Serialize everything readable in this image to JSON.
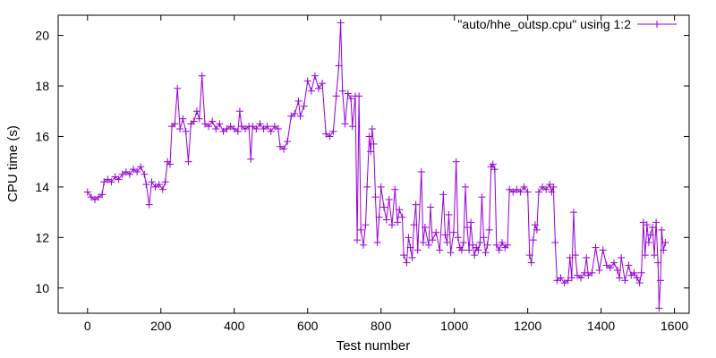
{
  "chart_data": {
    "type": "line",
    "xlabel": "Test number",
    "ylabel": "CPU time (s)",
    "xlim": [
      -80,
      1640
    ],
    "ylim": [
      9.0,
      20.8
    ],
    "xticks": [
      0,
      200,
      400,
      600,
      800,
      1000,
      1200,
      1400,
      1600
    ],
    "yticks": [
      10,
      12,
      14,
      16,
      18,
      20
    ],
    "grid": false,
    "legend_position": "top-right",
    "series": [
      {
        "name": "\"auto/hhe_outsp.cpu\" using 1:2",
        "color": "#9400D3",
        "marker": "plus",
        "points": [
          [
            0,
            13.8
          ],
          [
            10,
            13.6
          ],
          [
            20,
            13.5
          ],
          [
            30,
            13.6
          ],
          [
            40,
            13.7
          ],
          [
            45,
            14.2
          ],
          [
            55,
            14.3
          ],
          [
            65,
            14.2
          ],
          [
            75,
            14.4
          ],
          [
            85,
            14.3
          ],
          [
            95,
            14.5
          ],
          [
            105,
            14.6
          ],
          [
            115,
            14.5
          ],
          [
            125,
            14.7
          ],
          [
            135,
            14.6
          ],
          [
            145,
            14.8
          ],
          [
            155,
            14.5
          ],
          [
            160,
            14.1
          ],
          [
            168,
            13.3
          ],
          [
            175,
            14.2
          ],
          [
            185,
            14.0
          ],
          [
            195,
            14.1
          ],
          [
            205,
            13.9
          ],
          [
            212,
            14.2
          ],
          [
            218,
            15.0
          ],
          [
            225,
            14.9
          ],
          [
            230,
            16.4
          ],
          [
            238,
            16.5
          ],
          [
            245,
            17.9
          ],
          [
            252,
            16.3
          ],
          [
            260,
            16.7
          ],
          [
            268,
            16.2
          ],
          [
            275,
            15.0
          ],
          [
            282,
            16.5
          ],
          [
            290,
            16.6
          ],
          [
            298,
            17.0
          ],
          [
            305,
            16.7
          ],
          [
            312,
            18.4
          ],
          [
            320,
            16.5
          ],
          [
            330,
            16.4
          ],
          [
            340,
            16.6
          ],
          [
            350,
            16.3
          ],
          [
            360,
            16.5
          ],
          [
            370,
            16.2
          ],
          [
            380,
            16.3
          ],
          [
            390,
            16.4
          ],
          [
            400,
            16.3
          ],
          [
            410,
            16.2
          ],
          [
            415,
            17.0
          ],
          [
            420,
            16.4
          ],
          [
            430,
            16.3
          ],
          [
            440,
            16.4
          ],
          [
            445,
            15.1
          ],
          [
            450,
            16.4
          ],
          [
            460,
            16.3
          ],
          [
            470,
            16.5
          ],
          [
            480,
            16.3
          ],
          [
            490,
            16.4
          ],
          [
            500,
            16.2
          ],
          [
            510,
            16.4
          ],
          [
            520,
            16.3
          ],
          [
            525,
            15.6
          ],
          [
            535,
            15.5
          ],
          [
            545,
            15.8
          ],
          [
            555,
            16.8
          ],
          [
            565,
            16.9
          ],
          [
            575,
            17.4
          ],
          [
            580,
            16.8
          ],
          [
            590,
            17.2
          ],
          [
            600,
            18.2
          ],
          [
            610,
            17.8
          ],
          [
            620,
            18.4
          ],
          [
            630,
            17.9
          ],
          [
            640,
            18.1
          ],
          [
            650,
            16.1
          ],
          [
            660,
            16.0
          ],
          [
            670,
            16.2
          ],
          [
            678,
            17.6
          ],
          [
            685,
            18.8
          ],
          [
            690,
            20.5
          ],
          [
            695,
            17.8
          ],
          [
            702,
            16.5
          ],
          [
            710,
            17.7
          ],
          [
            718,
            17.5
          ],
          [
            722,
            16.4
          ],
          [
            730,
            17.6
          ],
          [
            735,
            11.9
          ],
          [
            740,
            17.6
          ],
          [
            745,
            12.3
          ],
          [
            752,
            11.7
          ],
          [
            758,
            12.5
          ],
          [
            762,
            14.0
          ],
          [
            768,
            16.0
          ],
          [
            772,
            15.4
          ],
          [
            776,
            16.3
          ],
          [
            780,
            15.7
          ],
          [
            785,
            13.6
          ],
          [
            790,
            11.8
          ],
          [
            795,
            12.8
          ],
          [
            800,
            14.0
          ],
          [
            808,
            13.2
          ],
          [
            815,
            12.7
          ],
          [
            822,
            13.5
          ],
          [
            830,
            12.5
          ],
          [
            838,
            13.9
          ],
          [
            845,
            12.6
          ],
          [
            850,
            13.1
          ],
          [
            858,
            12.8
          ],
          [
            862,
            11.3
          ],
          [
            870,
            11.0
          ],
          [
            875,
            12.0
          ],
          [
            880,
            11.6
          ],
          [
            885,
            11.2
          ],
          [
            890,
            12.5
          ],
          [
            895,
            13.3
          ],
          [
            900,
            11.5
          ],
          [
            910,
            14.6
          ],
          [
            915,
            11.8
          ],
          [
            920,
            12.4
          ],
          [
            930,
            11.7
          ],
          [
            935,
            13.2
          ],
          [
            940,
            11.9
          ],
          [
            950,
            12.2
          ],
          [
            960,
            11.5
          ],
          [
            970,
            13.7
          ],
          [
            975,
            12.1
          ],
          [
            980,
            11.8
          ],
          [
            985,
            12.9
          ],
          [
            990,
            11.4
          ],
          [
            998,
            12.2
          ],
          [
            1005,
            15.0
          ],
          [
            1010,
            12.0
          ],
          [
            1015,
            11.6
          ],
          [
            1020,
            11.5
          ],
          [
            1025,
            11.8
          ],
          [
            1030,
            14.0
          ],
          [
            1035,
            12.4
          ],
          [
            1040,
            11.5
          ],
          [
            1045,
            12.6
          ],
          [
            1050,
            11.7
          ],
          [
            1055,
            11.3
          ],
          [
            1060,
            11.6
          ],
          [
            1065,
            11.5
          ],
          [
            1070,
            11.8
          ],
          [
            1075,
            13.6
          ],
          [
            1080,
            12.0
          ],
          [
            1085,
            11.4
          ],
          [
            1090,
            11.7
          ],
          [
            1095,
            12.3
          ],
          [
            1100,
            14.8
          ],
          [
            1105,
            14.9
          ],
          [
            1110,
            14.7
          ],
          [
            1115,
            11.7
          ],
          [
            1122,
            11.5
          ],
          [
            1130,
            11.8
          ],
          [
            1138,
            11.6
          ],
          [
            1145,
            11.7
          ],
          [
            1150,
            13.9
          ],
          [
            1160,
            13.8
          ],
          [
            1170,
            13.9
          ],
          [
            1180,
            13.8
          ],
          [
            1190,
            14.0
          ],
          [
            1200,
            13.8
          ],
          [
            1205,
            11.3
          ],
          [
            1210,
            11.0
          ],
          [
            1215,
            11.9
          ],
          [
            1220,
            12.5
          ],
          [
            1225,
            12.3
          ],
          [
            1230,
            13.8
          ],
          [
            1240,
            14.0
          ],
          [
            1250,
            13.9
          ],
          [
            1260,
            14.1
          ],
          [
            1265,
            13.8
          ],
          [
            1270,
            14.0
          ],
          [
            1275,
            11.8
          ],
          [
            1280,
            10.3
          ],
          [
            1290,
            10.4
          ],
          [
            1300,
            10.2
          ],
          [
            1310,
            10.3
          ],
          [
            1315,
            11.2
          ],
          [
            1320,
            10.4
          ],
          [
            1325,
            13.0
          ],
          [
            1330,
            11.3
          ],
          [
            1335,
            10.5
          ],
          [
            1345,
            10.4
          ],
          [
            1355,
            10.6
          ],
          [
            1360,
            11.2
          ],
          [
            1365,
            10.5
          ],
          [
            1375,
            10.6
          ],
          [
            1385,
            11.6
          ],
          [
            1395,
            10.7
          ],
          [
            1405,
            11.5
          ],
          [
            1415,
            10.9
          ],
          [
            1425,
            10.8
          ],
          [
            1435,
            11.0
          ],
          [
            1445,
            10.7
          ],
          [
            1450,
            10.4
          ],
          [
            1455,
            11.2
          ],
          [
            1465,
            10.3
          ],
          [
            1475,
            10.9
          ],
          [
            1482,
            10.5
          ],
          [
            1490,
            10.6
          ],
          [
            1498,
            10.4
          ],
          [
            1505,
            10.2
          ],
          [
            1510,
            10.6
          ],
          [
            1515,
            12.6
          ],
          [
            1520,
            11.3
          ],
          [
            1525,
            12.5
          ],
          [
            1530,
            11.8
          ],
          [
            1535,
            12.1
          ],
          [
            1540,
            12.4
          ],
          [
            1545,
            11.3
          ],
          [
            1550,
            12.6
          ],
          [
            1555,
            11.0
          ],
          [
            1558,
            9.2
          ],
          [
            1562,
            10.3
          ],
          [
            1565,
            12.3
          ],
          [
            1570,
            11.5
          ],
          [
            1575,
            11.8
          ]
        ]
      }
    ]
  }
}
